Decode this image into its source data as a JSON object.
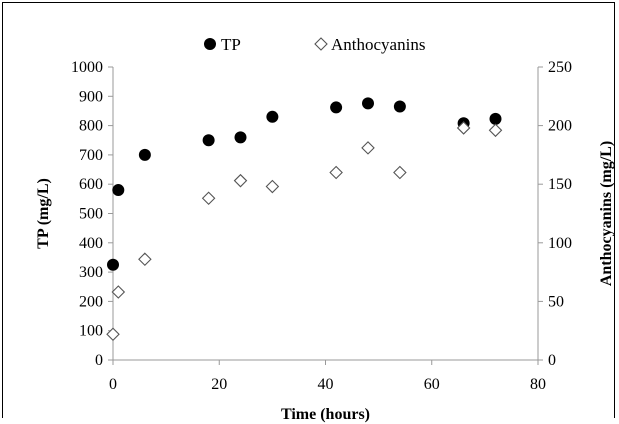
{
  "chart_data": {
    "type": "scatter",
    "xlabel": "Time (hours)",
    "ylabel": "TP (mg/L)",
    "y2label": "Anthocyanins (mg/L)",
    "xlim": [
      0,
      80
    ],
    "ylim": [
      0,
      1000
    ],
    "y2lim": [
      0,
      250
    ],
    "x_ticks": [
      0,
      20,
      40,
      60,
      80
    ],
    "y_ticks": [
      0,
      100,
      200,
      300,
      400,
      500,
      600,
      700,
      800,
      900,
      1000
    ],
    "y2_ticks": [
      0,
      50,
      100,
      150,
      200,
      250
    ],
    "grid": false,
    "legend_position": "top",
    "series": [
      {
        "name": "TP",
        "axis": "left",
        "marker": "filled-circle",
        "color": "#000000",
        "x": [
          0,
          1,
          6,
          18,
          24,
          30,
          42,
          48,
          54,
          66,
          72
        ],
        "y": [
          325,
          580,
          700,
          750,
          760,
          830,
          862,
          876,
          865,
          808,
          823
        ]
      },
      {
        "name": "Anthocyanins",
        "axis": "right",
        "marker": "open-diamond",
        "color": "#555555",
        "x": [
          0,
          1,
          6,
          18,
          24,
          30,
          42,
          48,
          54,
          66,
          72
        ],
        "y": [
          22,
          58,
          86,
          138,
          153,
          148,
          160,
          181,
          160,
          198,
          196
        ]
      }
    ]
  }
}
